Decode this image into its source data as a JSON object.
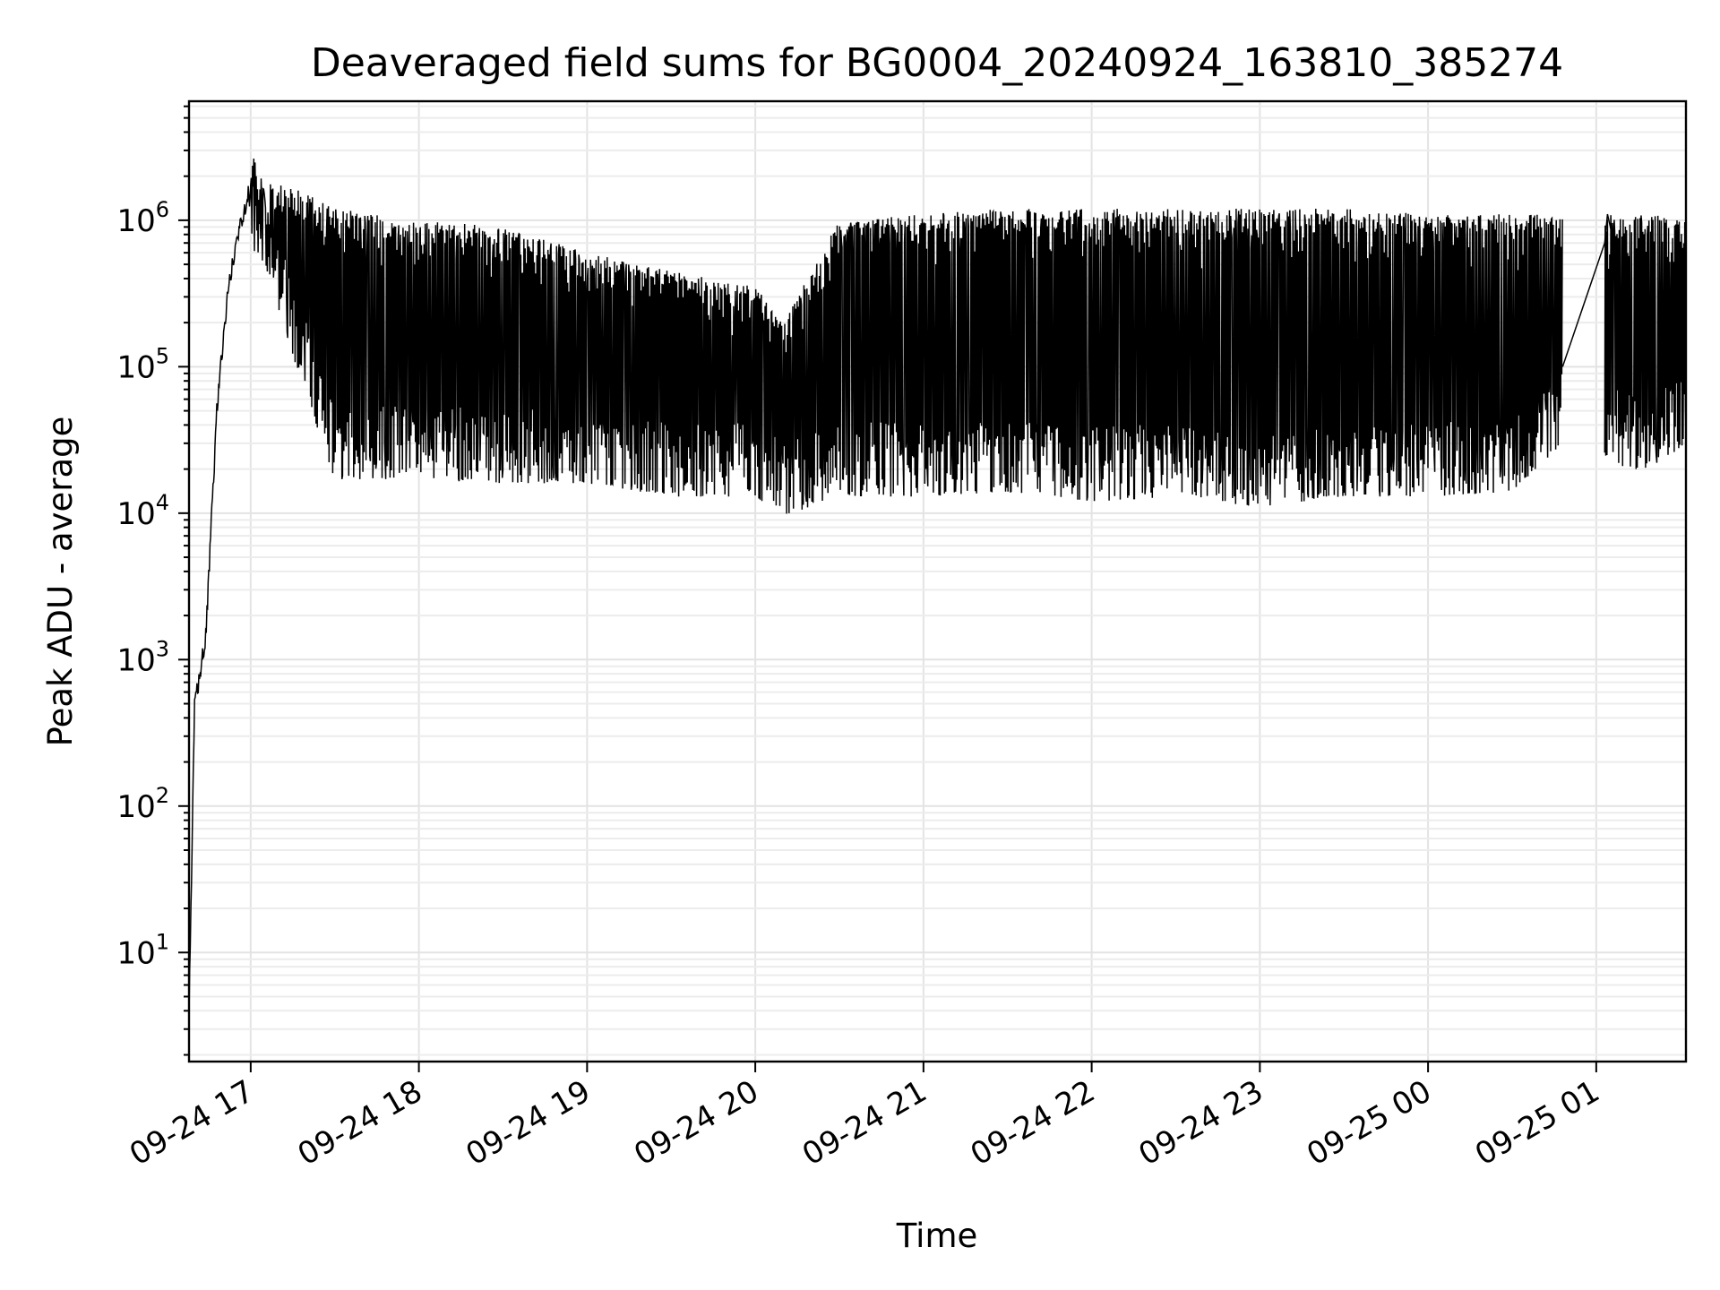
{
  "chart_data": {
    "type": "line",
    "title": "Deaveraged field sums for BG0004_20240924_163810_385274",
    "xlabel": "Time",
    "ylabel": "Peak ADU - average",
    "yscale": "log",
    "ylim": [
      1.8,
      6500000
    ],
    "xlim": [
      "2024-09-24 16:38",
      "2024-09-25 01:32"
    ],
    "x_ticks": [
      "09-24 17",
      "09-24 18",
      "09-24 19",
      "09-24 20",
      "09-24 21",
      "09-24 22",
      "09-24 23",
      "09-25 00",
      "09-25 01"
    ],
    "y_ticks": [
      {
        "base": "10",
        "exp": "1",
        "value": 10
      },
      {
        "base": "10",
        "exp": "2",
        "value": 100
      },
      {
        "base": "10",
        "exp": "3",
        "value": 1000
      },
      {
        "base": "10",
        "exp": "4",
        "value": 10000
      },
      {
        "base": "10",
        "exp": "5",
        "value": 100000
      },
      {
        "base": "10",
        "exp": "6",
        "value": 1000000
      }
    ],
    "grid": true,
    "line_color": "#000000",
    "series": [
      {
        "envelope": [
          {
            "x": "2024-09-24 16:38",
            "low": 3.8,
            "high": 3.8
          },
          {
            "x": "2024-09-24 16:40",
            "low": 400,
            "high": 600
          },
          {
            "x": "2024-09-24 16:44",
            "low": 1000,
            "high": 2000
          },
          {
            "x": "2024-09-24 16:48",
            "low": 50000,
            "high": 60000
          },
          {
            "x": "2024-09-24 16:52",
            "low": 300000,
            "high": 400000
          },
          {
            "x": "2024-09-24 16:56",
            "low": 800000,
            "high": 1000000
          },
          {
            "x": "2024-09-24 16:59",
            "low": 700000,
            "high": 3300000
          },
          {
            "x": "2024-09-24 17:05",
            "low": 500000,
            "high": 1800000
          },
          {
            "x": "2024-09-24 17:15",
            "low": 120000,
            "high": 1700000
          },
          {
            "x": "2024-09-24 17:30",
            "low": 17000,
            "high": 1200000
          },
          {
            "x": "2024-09-24 18:00",
            "low": 17000,
            "high": 1000000
          },
          {
            "x": "2024-09-24 18:30",
            "low": 16000,
            "high": 900000
          },
          {
            "x": "2024-09-24 19:00",
            "low": 16000,
            "high": 600000
          },
          {
            "x": "2024-09-24 19:30",
            "low": 13000,
            "high": 450000
          },
          {
            "x": "2024-09-24 20:00",
            "low": 13000,
            "high": 350000
          },
          {
            "x": "2024-09-24 20:10",
            "low": 9500,
            "high": 200000
          },
          {
            "x": "2024-09-24 20:30",
            "low": 13000,
            "high": 1000000
          },
          {
            "x": "2024-09-24 21:00",
            "low": 13000,
            "high": 1100000
          },
          {
            "x": "2024-09-24 21:30",
            "low": 14000,
            "high": 1200000
          },
          {
            "x": "2024-09-24 22:00",
            "low": 12000,
            "high": 1200000
          },
          {
            "x": "2024-09-24 22:30",
            "low": 13000,
            "high": 1200000
          },
          {
            "x": "2024-09-24 23:00",
            "low": 11000,
            "high": 1200000
          },
          {
            "x": "2024-09-24 23:30",
            "low": 13000,
            "high": 1200000
          },
          {
            "x": "2024-09-25 00:00",
            "low": 13000,
            "high": 1100000
          },
          {
            "x": "2024-09-25 00:30",
            "low": 14000,
            "high": 1100000
          },
          {
            "x": "2024-09-25 00:48",
            "low": 30000,
            "high": 1100000
          }
        ],
        "gap_segment": [
          {
            "x": "2024-09-25 00:48",
            "y": 100000
          },
          {
            "x": "2024-09-25 01:03",
            "y": 700000
          },
          {
            "x": "2024-09-25 01:04",
            "y": 1100000
          },
          {
            "x": "2024-09-25 01:08",
            "y": 500000
          }
        ],
        "tail_envelope": [
          {
            "x": "2024-09-25 01:03",
            "low": 25000,
            "high": 1100000
          },
          {
            "x": "2024-09-25 01:10",
            "low": 20000,
            "high": 1100000
          },
          {
            "x": "2024-09-25 01:20",
            "low": 20000,
            "high": 1100000
          },
          {
            "x": "2024-09-25 01:32",
            "low": 30000,
            "high": 1000000
          }
        ]
      }
    ]
  }
}
